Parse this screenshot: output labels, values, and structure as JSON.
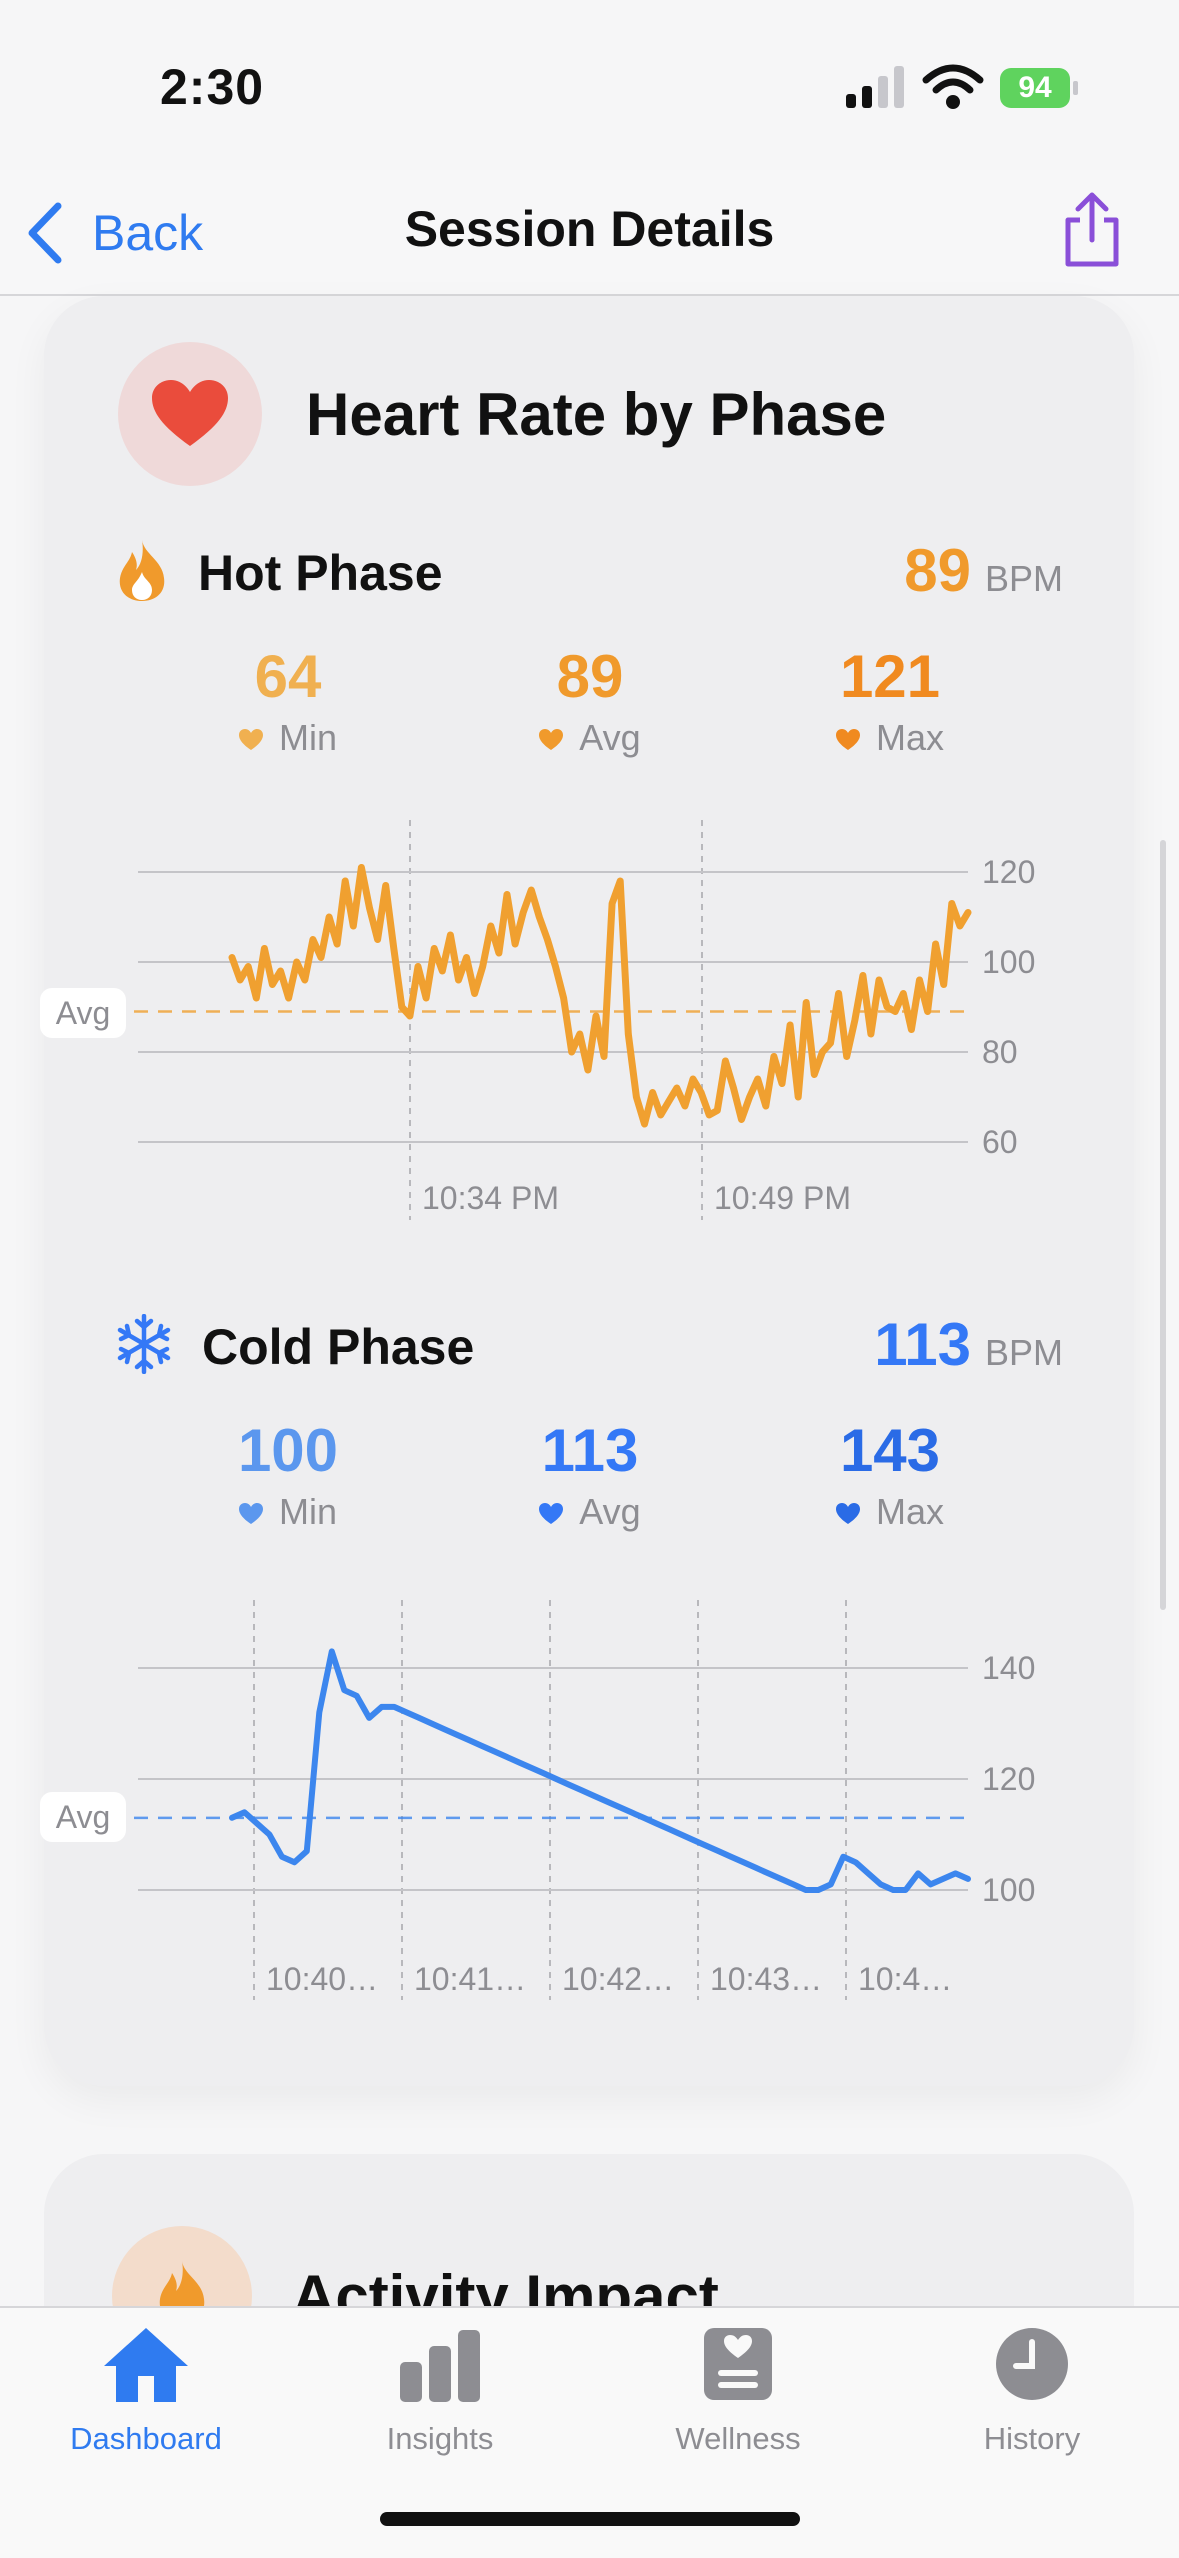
{
  "status": {
    "time": "2:30",
    "battery": "94"
  },
  "nav": {
    "back_label": "Back",
    "title": "Session Details"
  },
  "card": {
    "title": "Heart Rate by Phase"
  },
  "hot": {
    "title": "Hot Phase",
    "bpm": "89",
    "unit": "BPM",
    "stats": [
      {
        "value": "64",
        "label": "Min"
      },
      {
        "value": "89",
        "label": "Avg"
      },
      {
        "value": "121",
        "label": "Max"
      }
    ],
    "avg_label": "Avg",
    "color": "#f09a2c"
  },
  "cold": {
    "title": "Cold Phase",
    "bpm": "113",
    "unit": "BPM",
    "stats": [
      {
        "value": "100",
        "label": "Min"
      },
      {
        "value": "113",
        "label": "Avg"
      },
      {
        "value": "143",
        "label": "Max"
      }
    ],
    "avg_label": "Avg",
    "color": "#3478f6"
  },
  "chart_data": [
    {
      "type": "line",
      "name": "Hot Phase",
      "x_tick_labels": [
        "10:34 PM",
        "10:49 PM"
      ],
      "y_ticks": [
        120,
        100,
        80,
        60
      ],
      "ylim": [
        60,
        120
      ],
      "avg_line": 89,
      "series": [
        {
          "name": "Hot Phase",
          "values": [
            101,
            96,
            99,
            92,
            103,
            95,
            98,
            92,
            100,
            96,
            105,
            101,
            110,
            104,
            118,
            108,
            121,
            112,
            105,
            117,
            103,
            90,
            88,
            99,
            92,
            103,
            98,
            106,
            96,
            101,
            93,
            99,
            108,
            102,
            115,
            104,
            111,
            116,
            110,
            105,
            99,
            92,
            80,
            84,
            76,
            88,
            79,
            113,
            118,
            84,
            70,
            64,
            71,
            66,
            69,
            72,
            68,
            74,
            71,
            66,
            67,
            78,
            72,
            65,
            70,
            74,
            68,
            79,
            73,
            86,
            70,
            91,
            75,
            80,
            82,
            93,
            79,
            87,
            97,
            84,
            96,
            90,
            89,
            93,
            85,
            96,
            89,
            104,
            95,
            113,
            108,
            111
          ]
        }
      ],
      "color": "#f0a030"
    },
    {
      "type": "line",
      "name": "Cold Phase",
      "x_tick_labels": [
        "10:40…",
        "10:41…",
        "10:42…",
        "10:43…",
        "10:4…"
      ],
      "y_ticks": [
        140,
        120,
        100
      ],
      "ylim": [
        100,
        140
      ],
      "avg_line": 113,
      "series": [
        {
          "name": "Cold Phase",
          "values": [
            113,
            114,
            112,
            110,
            106,
            105,
            107,
            132,
            143,
            136,
            135,
            131,
            133,
            133,
            132,
            131,
            130,
            129,
            128,
            127,
            126,
            125,
            124,
            123,
            122,
            121,
            120,
            119,
            118,
            117,
            116,
            115,
            114,
            113,
            112,
            111,
            110,
            109,
            108,
            107,
            106,
            105,
            104,
            103,
            102,
            101,
            100,
            100,
            101,
            106,
            105,
            103,
            101,
            100,
            100,
            103,
            101,
            102,
            103,
            102
          ]
        }
      ],
      "color": "#3c86ee"
    }
  ],
  "next_card": {
    "title": "Activity Impact"
  },
  "tabs": [
    {
      "label": "Dashboard",
      "icon": "house-icon",
      "active": true
    },
    {
      "label": "Insights",
      "icon": "bar-chart-icon",
      "active": false
    },
    {
      "label": "Wellness",
      "icon": "wellness-card-icon",
      "active": false
    },
    {
      "label": "History",
      "icon": "clock-icon",
      "active": false
    }
  ]
}
